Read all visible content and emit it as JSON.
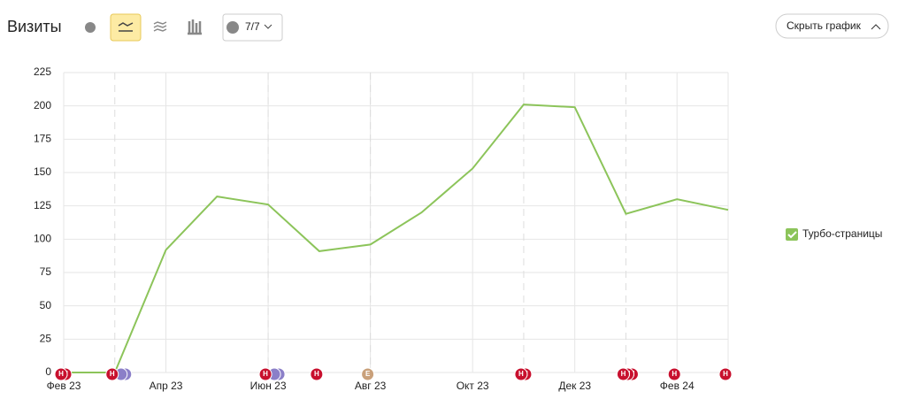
{
  "header": {
    "title": "Визиты",
    "notes_counter": "7/7",
    "hide_button": "Скрыть график"
  },
  "chart_data": {
    "type": "line",
    "categories": [
      "Фев 23",
      null,
      "Апр 23",
      null,
      "Июн 23",
      null,
      "Авг 23",
      null,
      "Окт 23",
      null,
      "Дек 23",
      null,
      "Фев 24",
      null
    ],
    "series": [
      {
        "name": "Турбо-страницы",
        "color": "#8cc45a",
        "values": [
          0,
          0,
          92,
          132,
          126,
          91,
          96,
          120,
          153,
          201,
          199,
          119,
          130,
          122
        ]
      }
    ],
    "ylim": [
      0,
      225
    ],
    "yticks": [
      0,
      25,
      50,
      75,
      100,
      125,
      150,
      175,
      200,
      225
    ],
    "grid": true,
    "legend": "right",
    "events": [
      [
        "Н",
        "Н"
      ],
      [
        "Н"
      ],
      [],
      [],
      [
        "Н"
      ],
      [
        "Н"
      ],
      [
        "Е"
      ],
      [],
      [],
      [
        "Н",
        "Н"
      ],
      [],
      [
        "Н",
        "Н",
        "Н"
      ],
      [
        "Н"
      ],
      [
        "Н"
      ]
    ]
  }
}
